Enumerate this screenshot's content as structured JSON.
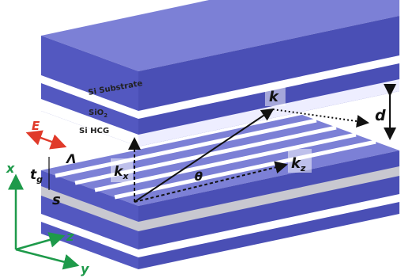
{
  "labels": {
    "substrate": "Si Substrate",
    "oxide": {
      "text": "SiO",
      "sub": "2"
    },
    "grating": "Si HCG",
    "field": "E",
    "period": "Λ",
    "thickness": {
      "text": "t",
      "sub": "g"
    },
    "spacing": "s",
    "kx": {
      "text": "k",
      "sub": "x"
    },
    "angle": "θ",
    "kz": {
      "text": "k",
      "sub": "z"
    },
    "k": "k",
    "gap": "d"
  },
  "axes": {
    "x": "x",
    "y": "y",
    "z": "z"
  }
}
